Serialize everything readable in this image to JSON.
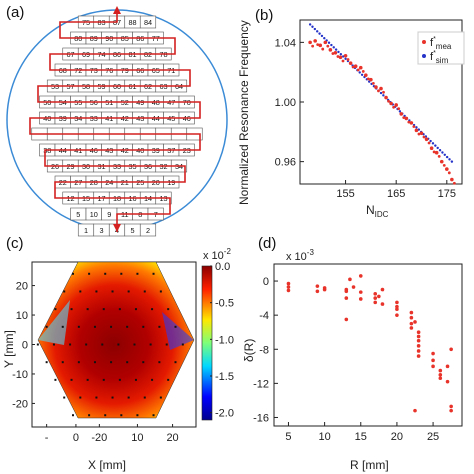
{
  "panels": {
    "a": {
      "label": "(a)"
    },
    "b": {
      "label": "(b)"
    },
    "c": {
      "label": "(c)"
    },
    "d": {
      "label": "(d)"
    }
  },
  "diagram_a": {
    "rows": [
      [
        "75",
        "83",
        "87",
        "88",
        "84"
      ],
      [
        "80",
        "89",
        "90",
        "85",
        "86",
        "77"
      ],
      [
        "67",
        "69",
        "74",
        "86",
        "81",
        "82",
        "78"
      ],
      [
        "68",
        "72",
        "73",
        "76",
        "79",
        "66",
        "65",
        "71"
      ],
      [
        "53",
        "57",
        "58",
        "59",
        "60",
        "61",
        "62",
        "63",
        "64"
      ],
      [
        "50",
        "54",
        "55",
        "56",
        "51",
        "52",
        "49",
        "48",
        "47",
        "70"
      ],
      [
        "40",
        "39",
        "34",
        "33",
        "41",
        "42",
        "43",
        "44",
        "45",
        "46"
      ],
      [
        "",
        "",
        "",
        "",
        "",
        "",
        "",
        "",
        "",
        "",
        ""
      ],
      [
        "38",
        "44",
        "41",
        "46",
        "43",
        "42",
        "40",
        "39",
        "37",
        "23"
      ],
      [
        "26",
        "29",
        "30",
        "31",
        "33",
        "35",
        "36",
        "32",
        "34"
      ],
      [
        "22",
        "27",
        "28",
        "24",
        "21",
        "25",
        "20",
        "19"
      ],
      [
        "12",
        "15",
        "17",
        "18",
        "16",
        "14",
        "13"
      ],
      [
        "5",
        "10",
        "9",
        "11",
        "8",
        "7"
      ],
      [
        "1",
        "3",
        "4",
        "5",
        "2"
      ]
    ],
    "colors": {
      "circle": "#3b8bd6",
      "path": "#d42020",
      "cell_border": "#555555"
    }
  },
  "chart_data": [
    {
      "panel": "b",
      "type": "scatter",
      "xlabel": "N_IDC",
      "ylabel": "Normalized Resonance Frequency",
      "xlim": [
        146,
        178
      ],
      "ylim": [
        0.945,
        1.055
      ],
      "xticks": [
        "155",
        "165",
        "175"
      ],
      "yticks": [
        "0.96",
        "1.00",
        "1.04"
      ],
      "legend_placement": "top-right",
      "series": [
        {
          "name": "f*mea",
          "color": "#e8332a",
          "marker": "dot",
          "x": [
            148,
            149,
            150,
            151,
            152,
            153,
            154,
            155,
            156,
            157,
            158,
            159,
            160,
            161,
            162,
            163,
            164,
            165,
            166,
            167,
            168,
            169,
            170,
            171,
            172,
            173,
            174,
            175,
            176
          ],
          "y": [
            1.04,
            1.041,
            1.038,
            1.04,
            1.035,
            1.033,
            1.03,
            1.031,
            1.026,
            1.024,
            1.023,
            1.018,
            1.015,
            1.01,
            1.009,
            1.003,
            0.999,
            0.998,
            0.992,
            0.989,
            0.986,
            0.981,
            0.979,
            0.975,
            0.969,
            0.966,
            0.96,
            0.955,
            0.948
          ]
        },
        {
          "name": "f*sim",
          "color": "#2533c8",
          "marker": "dot",
          "x": [
            148,
            176
          ],
          "y": [
            1.052,
            0.96
          ]
        }
      ]
    },
    {
      "panel": "c",
      "type": "heatmap",
      "xlabel": "X [mm]",
      "ylabel": "Y [mm]",
      "xlim": [
        -28,
        28
      ],
      "ylim": [
        -28,
        28
      ],
      "xticks": [
        "-",
        "0",
        "-20",
        "10",
        "20"
      ],
      "yticks": [
        "20",
        "10",
        "0",
        "-10",
        "-20"
      ],
      "colorbar": {
        "exponent": "x 10",
        "power": "-2",
        "range": [
          -2.1,
          0.0
        ],
        "ticks": [
          "0.0",
          "-0.5",
          "-1.0",
          "-1.5",
          "-2.0"
        ]
      }
    },
    {
      "panel": "d",
      "type": "scatter",
      "xlabel": "R [mm]",
      "ylabel": "δ(R)",
      "exponent_label": "x 10",
      "exponent_power": "-3",
      "xlim": [
        3,
        29
      ],
      "ylim": [
        -17,
        2
      ],
      "xticks": [
        "5",
        "10",
        "15",
        "20",
        "25"
      ],
      "yticks": [
        "0",
        "-4",
        "-8",
        "-12",
        "-16"
      ],
      "series": [
        {
          "name": "",
          "color": "#e8332a",
          "x": [
            5,
            5,
            5,
            9,
            9,
            10,
            10,
            13,
            13,
            13,
            13,
            13.5,
            14,
            15,
            15,
            15,
            17,
            17,
            17,
            17.5,
            18,
            18,
            20,
            20,
            20,
            20,
            22,
            22,
            22,
            22,
            22.5,
            22.5,
            23,
            23,
            23,
            23,
            23,
            23,
            25,
            25,
            25,
            26,
            26,
            26,
            27,
            27,
            27.5,
            27.5,
            27.5
          ],
          "y": [
            -0.3,
            -0.7,
            -1.1,
            -0.6,
            -1.2,
            -0.8,
            -1.0,
            -1.0,
            -1.2,
            -2.0,
            -4.5,
            0.2,
            -0.7,
            0.6,
            -1.3,
            -2.1,
            -1.5,
            -2.0,
            -2.5,
            -1.8,
            -1.0,
            -2.7,
            -2.5,
            -3.0,
            -3.3,
            -4.0,
            -3.7,
            -4.3,
            -5.0,
            -5.5,
            -4.8,
            -15.2,
            -6.0,
            -6.5,
            -7.0,
            -7.6,
            -8.2,
            -8.8,
            -8.5,
            -9.3,
            -10.0,
            -10.5,
            -11.0,
            -11.4,
            -10.0,
            -11.8,
            -8.0,
            -14.7,
            -15.2
          ]
        }
      ]
    }
  ]
}
